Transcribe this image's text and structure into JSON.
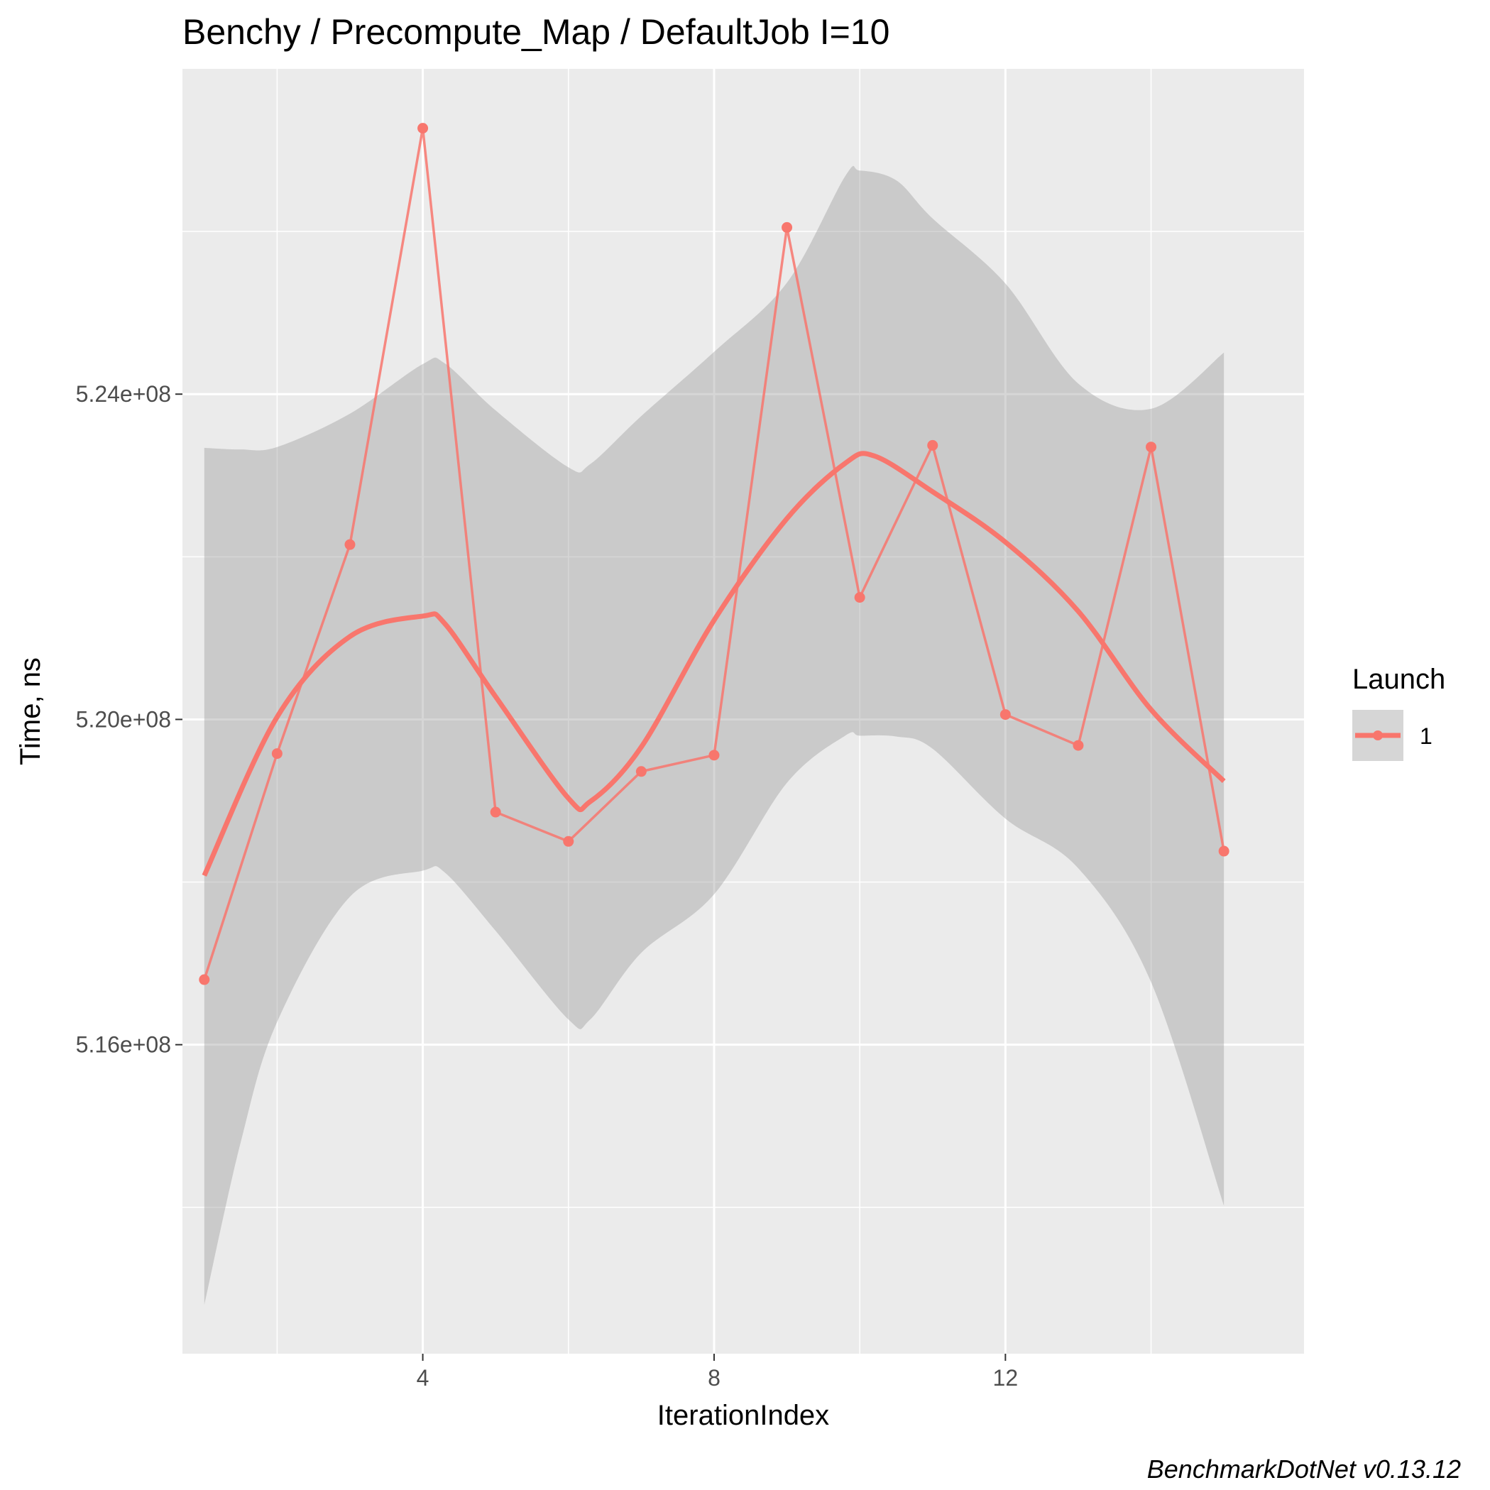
{
  "chart_data": {
    "type": "line",
    "title": "Benchy / Precompute_Map / DefaultJob I=10",
    "xlabel": "IterationIndex",
    "ylabel": "Time, ns",
    "caption": "BenchmarkDotNet v0.13.12",
    "x_ticks": [
      4,
      8,
      12
    ],
    "y_ticks": [
      516000000,
      520000000,
      524000000
    ],
    "y_tick_labels": [
      "5.16e+08",
      "5.20e+08",
      "5.24e+08"
    ],
    "xlim": [
      0.7,
      16.1
    ],
    "ylim": [
      512200000,
      528000000
    ],
    "grid": true,
    "legend": {
      "title": "Launch",
      "position": "right",
      "entries": [
        "1"
      ]
    },
    "series": [
      {
        "name": "1",
        "color": "#F8766D",
        "x": [
          1,
          2,
          3,
          4,
          5,
          6,
          7,
          8,
          9,
          10,
          11,
          12,
          13,
          14,
          15
        ],
        "values": [
          516800000,
          519580000,
          522150000,
          527270000,
          518860000,
          518500000,
          519360000,
          519560000,
          526050000,
          521500000,
          523370000,
          520060000,
          519680000,
          523350000,
          518380000
        ]
      }
    ],
    "smooth": {
      "color": "#F8766D",
      "x": [
        1,
        2,
        3,
        4,
        4.3,
        5,
        6,
        6.3,
        7,
        8,
        9,
        9.8,
        10.2,
        11,
        12,
        13,
        14,
        15
      ],
      "values": [
        518080000,
        520030000,
        521020000,
        521270000,
        521180000,
        520280000,
        519030000,
        518990000,
        519660000,
        521220000,
        522470000,
        523150000,
        523240000,
        522800000,
        522180000,
        521330000,
        520120000,
        519240000
      ]
    },
    "confidence_band": {
      "x": [
        1,
        1.5,
        2,
        3,
        4,
        4.3,
        5,
        6,
        6.3,
        7,
        8,
        9,
        9.8,
        10,
        10.5,
        11,
        12,
        13,
        14,
        15
      ],
      "upper": [
        523340000,
        523320000,
        523350000,
        523760000,
        524370000,
        524380000,
        523800000,
        523100000,
        523140000,
        523730000,
        524520000,
        525370000,
        526680000,
        526750000,
        526630000,
        526160000,
        525360000,
        524130000,
        523820000,
        524510000
      ],
      "lower": [
        512800000,
        514800000,
        516280000,
        517820000,
        518140000,
        518120000,
        517400000,
        516310000,
        516310000,
        517130000,
        517850000,
        519220000,
        519800000,
        519800000,
        519790000,
        519640000,
        518780000,
        518170000,
        516770000,
        514020000
      ]
    }
  }
}
